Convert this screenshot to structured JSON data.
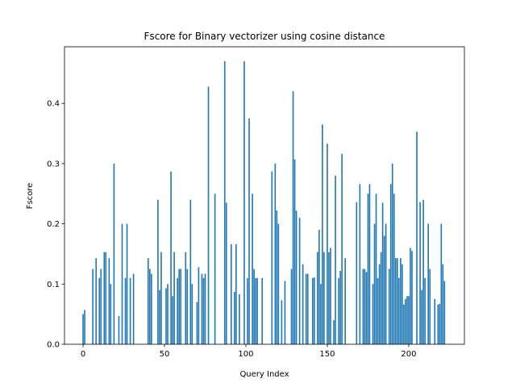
{
  "chart_data": {
    "type": "bar",
    "title": "Fscore for Binary vectorizer using cosine distance",
    "xlabel": "Query Index",
    "ylabel": "Fscore",
    "color": "#1f77b4",
    "x": [
      0,
      1,
      6,
      8,
      10,
      11,
      13,
      14,
      16,
      17,
      19,
      22,
      24,
      26,
      27,
      29,
      31,
      40,
      41,
      42,
      46,
      47,
      48,
      51,
      52,
      54,
      55,
      56,
      58,
      59,
      60,
      63,
      64,
      66,
      67,
      70,
      71,
      73,
      74,
      75,
      77,
      81,
      87,
      88,
      91,
      93,
      94,
      96,
      99,
      101,
      102,
      104,
      105,
      106,
      107,
      110,
      116,
      118,
      119,
      120,
      122,
      124,
      128,
      129,
      130,
      131,
      133,
      135,
      137,
      138,
      141,
      142,
      144,
      145,
      146,
      147,
      148,
      150,
      151,
      152,
      154,
      155,
      157,
      158,
      159,
      161,
      168,
      170,
      172,
      173,
      174,
      175,
      176,
      178,
      179,
      180,
      181,
      182,
      183,
      184,
      185,
      186,
      188,
      189,
      190,
      191,
      192,
      193,
      194,
      195,
      196,
      197,
      198,
      199,
      200,
      201,
      202,
      205,
      207,
      208,
      209,
      210,
      212,
      213,
      216,
      218,
      219,
      220,
      221,
      222
    ],
    "values": [
      0.05,
      0.057,
      0.125,
      0.143,
      0.11,
      0.125,
      0.153,
      0.153,
      0.143,
      0.1,
      0.3,
      0.047,
      0.2,
      0.11,
      0.2,
      0.11,
      0.117,
      0.143,
      0.125,
      0.117,
      0.24,
      0.09,
      0.153,
      0.093,
      0.1,
      0.287,
      0.08,
      0.153,
      0.11,
      0.125,
      0.125,
      0.153,
      0.125,
      0.24,
      0.1,
      0.07,
      0.128,
      0.117,
      0.11,
      0.117,
      0.428,
      0.25,
      0.47,
      0.235,
      0.166,
      0.087,
      0.166,
      0.083,
      0.47,
      0.11,
      0.375,
      0.25,
      0.125,
      0.11,
      0.11,
      0.11,
      0.287,
      0.3,
      0.222,
      0.2,
      0.073,
      0.105,
      0.125,
      0.42,
      0.307,
      0.222,
      0.21,
      0.133,
      0.117,
      0.117,
      0.11,
      0.111,
      0.153,
      0.19,
      0.1,
      0.365,
      0.153,
      0.333,
      0.153,
      0.16,
      0.04,
      0.28,
      0.11,
      0.122,
      0.316,
      0.143,
      0.236,
      0.266,
      0.125,
      0.125,
      0.12,
      0.25,
      0.266,
      0.1,
      0.2,
      0.25,
      0.11,
      0.133,
      0.153,
      0.235,
      0.18,
      0.2,
      0.125,
      0.266,
      0.3,
      0.25,
      0.143,
      0.143,
      0.11,
      0.143,
      0.133,
      0.066,
      0.075,
      0.08,
      0.08,
      0.16,
      0.155,
      0.353,
      0.236,
      0.09,
      0.24,
      0.11,
      0.2,
      0.125,
      0.075,
      0.066,
      0.067,
      0.2,
      0.133,
      0.105
    ],
    "xlim": [
      -11.4,
      234.2
    ],
    "ylim": [
      0,
      0.494
    ],
    "xticks": [
      0,
      50,
      100,
      150,
      200
    ],
    "yticks": [
      {
        "value": 0,
        "label": "0.0"
      },
      0.1,
      0.2,
      0.3,
      0.4
    ]
  }
}
